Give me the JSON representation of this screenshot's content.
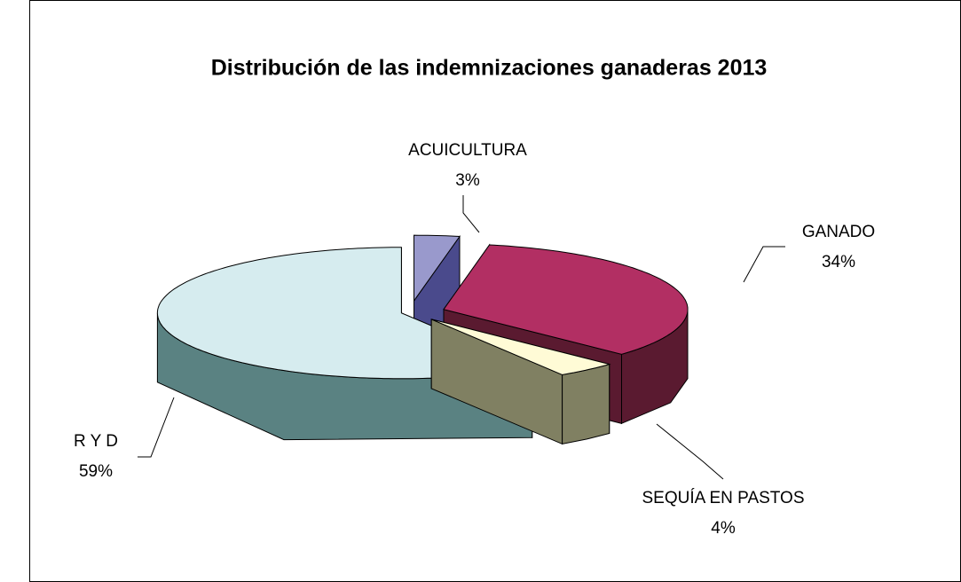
{
  "chart_data": {
    "type": "pie3d",
    "title": "Distribución de las indemnizaciones ganaderas 2013",
    "categories": [
      "ACUICULTURA",
      "GANADO",
      "SEQUÍA EN PASTOS",
      "R Y D"
    ],
    "values": [
      3,
      34,
      4,
      59
    ],
    "value_labels": [
      "3%",
      "34%",
      "4%",
      "59%"
    ],
    "colors": [
      "#9999cc",
      "#b22f63",
      "#fffbd6",
      "#d6ecef"
    ],
    "side_colors": [
      "#4a4a8c",
      "#5a1a30",
      "#808062",
      "#5a8282"
    ]
  }
}
